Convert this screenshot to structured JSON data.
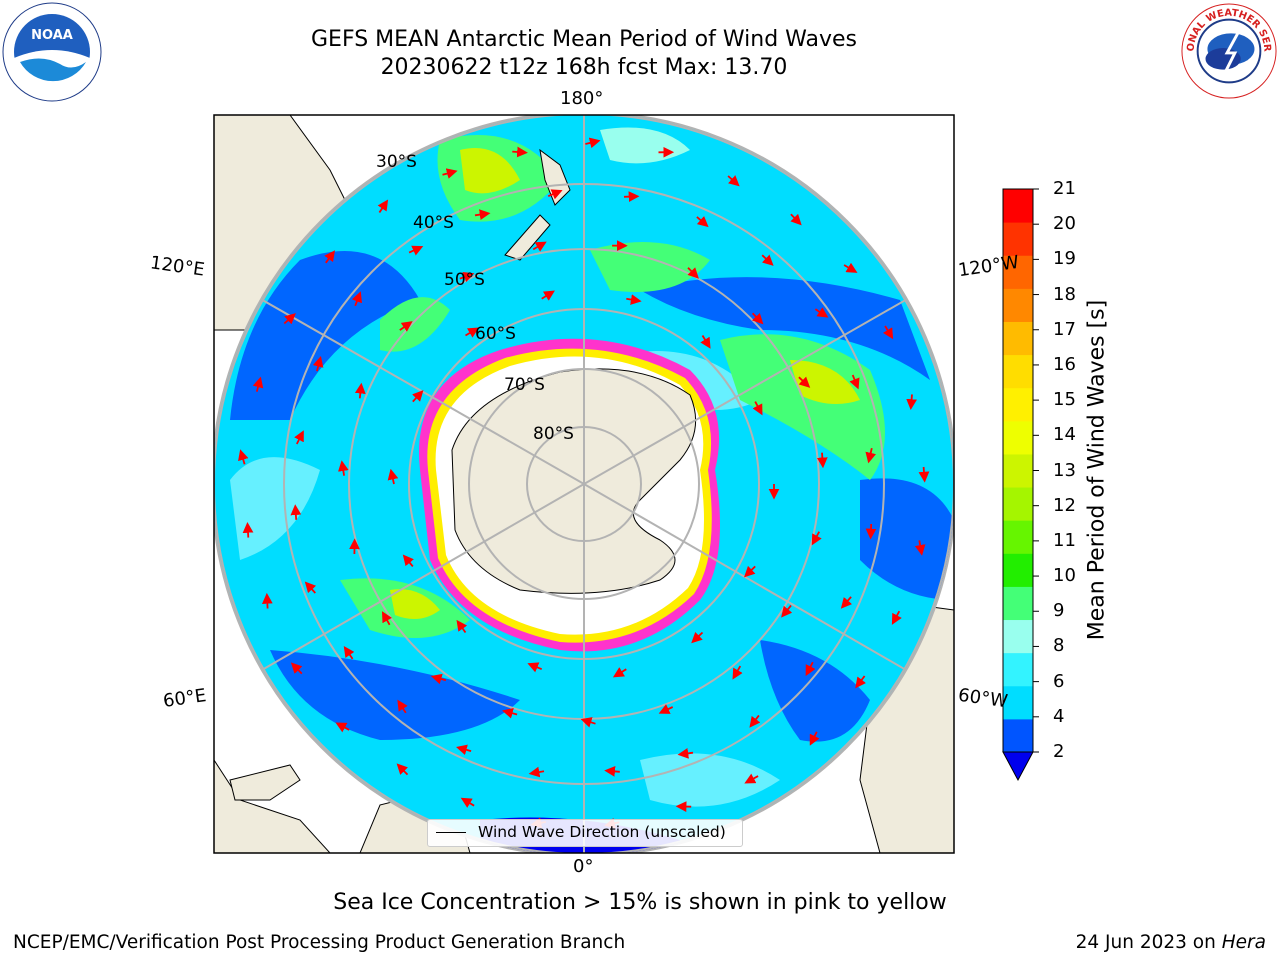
{
  "title": {
    "line1": "GEFS MEAN Antarctic Mean Period of Wind Waves",
    "line2": "20230622 t12z 168h fcst   Max: 13.70"
  },
  "logos": {
    "left": "noaa-logo",
    "right": "national-weather-service-logo",
    "left_text": "NOAA",
    "right_text": "NATIONAL WEATHER SERVICE"
  },
  "map": {
    "projection": "south-polar-stereographic",
    "lon_labels": {
      "top": "180°",
      "bottom": "0°",
      "left_upper": "120°E",
      "left_lower": "60°E",
      "right_upper": "120°W",
      "right_lower": "60°W"
    },
    "lat_labels": [
      "30°S",
      "40°S",
      "50°S",
      "60°S",
      "70°S",
      "80°S"
    ],
    "legend": "Wind Wave Direction (unscaled)",
    "arrow_color": "#ff0000",
    "land_color": "#efebdc",
    "ice_note_colors": [
      "#ff33cc",
      "#ffee00"
    ]
  },
  "colorbar": {
    "label": "Mean Period of Wind Waves [s]",
    "ticks": [
      "2",
      "4",
      "6",
      "8",
      "9",
      "10",
      "11",
      "12",
      "13",
      "14",
      "15",
      "16",
      "17",
      "18",
      "19",
      "20",
      "21"
    ],
    "colors": [
      "#0055ff",
      "#00ddff",
      "#33f3ff",
      "#99ffee",
      "#44ff77",
      "#22ee00",
      "#66f500",
      "#a5f500",
      "#ccf500",
      "#eeff00",
      "#fff000",
      "#ffdd00",
      "#ffbb00",
      "#ff8800",
      "#ff6600",
      "#ff3300",
      "#ff0000"
    ],
    "under_color": "#0000ee"
  },
  "footnote": "Sea Ice Concentration > 15% is shown in pink to yellow",
  "credit": "NCEP/EMC/Verification Post Processing Product Generation Branch",
  "stamp": {
    "date": "24 Jun 2023 on ",
    "machine": "Hera"
  }
}
